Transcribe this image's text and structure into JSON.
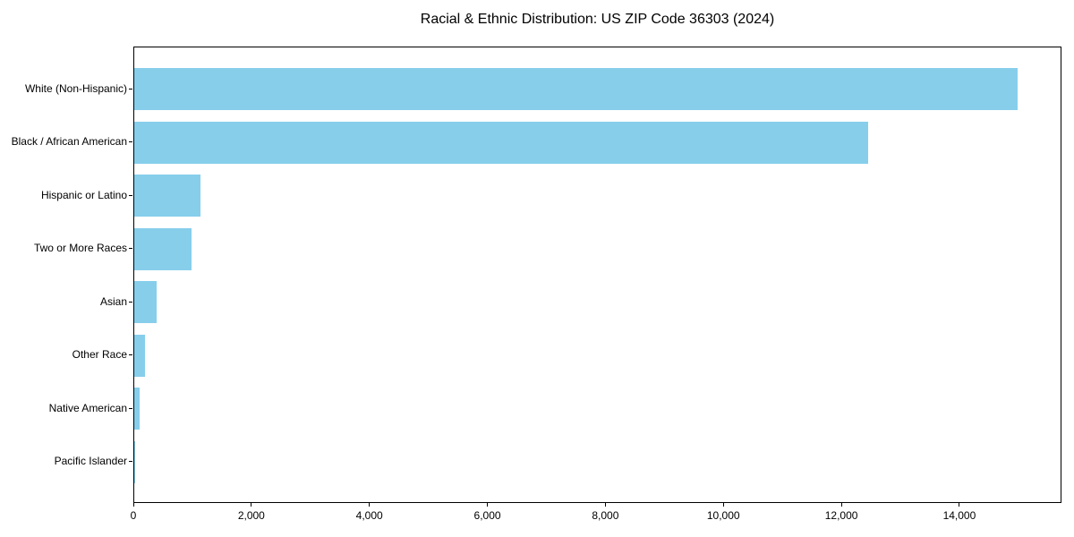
{
  "chart_data": {
    "type": "bar",
    "orientation": "horizontal",
    "title": "Racial & Ethnic Distribution: US ZIP Code 36303 (2024)",
    "categories": [
      "White (Non-Hispanic)",
      "Black / African American",
      "Hispanic or Latino",
      "Two or More Races",
      "Asian",
      "Other Race",
      "Native American",
      "Pacific Islander"
    ],
    "values": [
      14970,
      12440,
      1120,
      970,
      380,
      175,
      85,
      10
    ],
    "xlabel": "",
    "ylabel": "",
    "xlim": [
      0,
      15730
    ],
    "x_ticks": [
      0,
      2000,
      4000,
      6000,
      8000,
      10000,
      12000,
      14000
    ],
    "x_tick_labels": [
      "0",
      "2,000",
      "4,000",
      "6,000",
      "8,000",
      "10,000",
      "12,000",
      "14,000"
    ],
    "bar_color": "#87CEEB",
    "frame_color": "#000000",
    "background_color": "#FFFFFF",
    "grid": false,
    "legend_position": "none"
  }
}
